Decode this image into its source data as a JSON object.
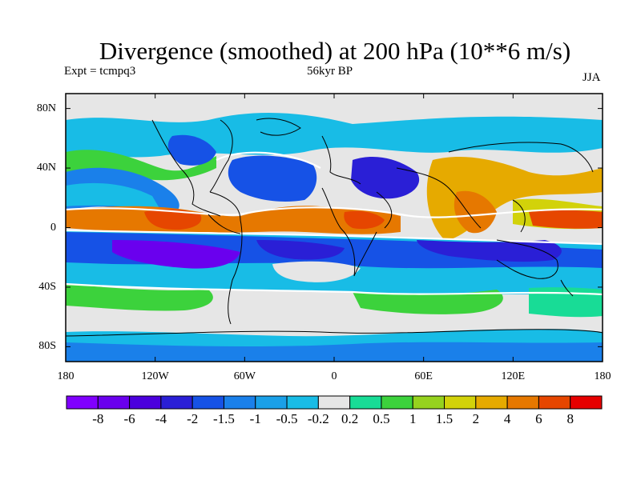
{
  "title": "Divergence (smoothed) at 200 hPa (10**6 m/s)",
  "subtitle_left": "Expt = tcmpq3",
  "subtitle_center": "56kyr BP",
  "subtitle_right": "JJA",
  "map": {
    "lon_range": [
      -180,
      180
    ],
    "lat_range": [
      -90,
      90
    ],
    "projection": "cylindrical equidistant",
    "coastlines": true,
    "y_ticks": [
      {
        "lat": 80,
        "label": "80N"
      },
      {
        "lat": 40,
        "label": "40N"
      },
      {
        "lat": 0,
        "label": "0"
      },
      {
        "lat": -40,
        "label": "40S"
      },
      {
        "lat": -80,
        "label": "80S"
      }
    ],
    "x_ticks": [
      {
        "lon": -180,
        "label": "180"
      },
      {
        "lon": -120,
        "label": "120W"
      },
      {
        "lon": -60,
        "label": "60W"
      },
      {
        "lon": 0,
        "label": "0"
      },
      {
        "lon": 60,
        "label": "60E"
      },
      {
        "lon": 120,
        "label": "120E"
      },
      {
        "lon": 180,
        "label": "180"
      }
    ]
  },
  "colorbar": {
    "colors": [
      "#8000ff",
      "#6a00ee",
      "#4b00dd",
      "#2a1fd6",
      "#1652e6",
      "#1a80ea",
      "#1aa0e8",
      "#18bce6",
      "#e6e6e6",
      "#18dc96",
      "#3cd23c",
      "#96d21e",
      "#d2d20a",
      "#e6aa00",
      "#e67800",
      "#e64600",
      "#e60000"
    ],
    "labels": [
      "-8",
      "-6",
      "-4",
      "-2",
      "-1.5",
      "-1",
      "-0.5",
      "-0.2",
      "0.2",
      "0.5",
      "1",
      "1.5",
      "2",
      "4",
      "6",
      "8"
    ]
  },
  "legend_colors": {
    "strong_negative": "#6a00ee",
    "negative": "#1652e6",
    "weak_negative": "#18bce6",
    "neutral": "#e6e6e6",
    "weak_positive": "#3cd23c",
    "positive": "#e6aa00",
    "strong_positive": "#e60000"
  }
}
